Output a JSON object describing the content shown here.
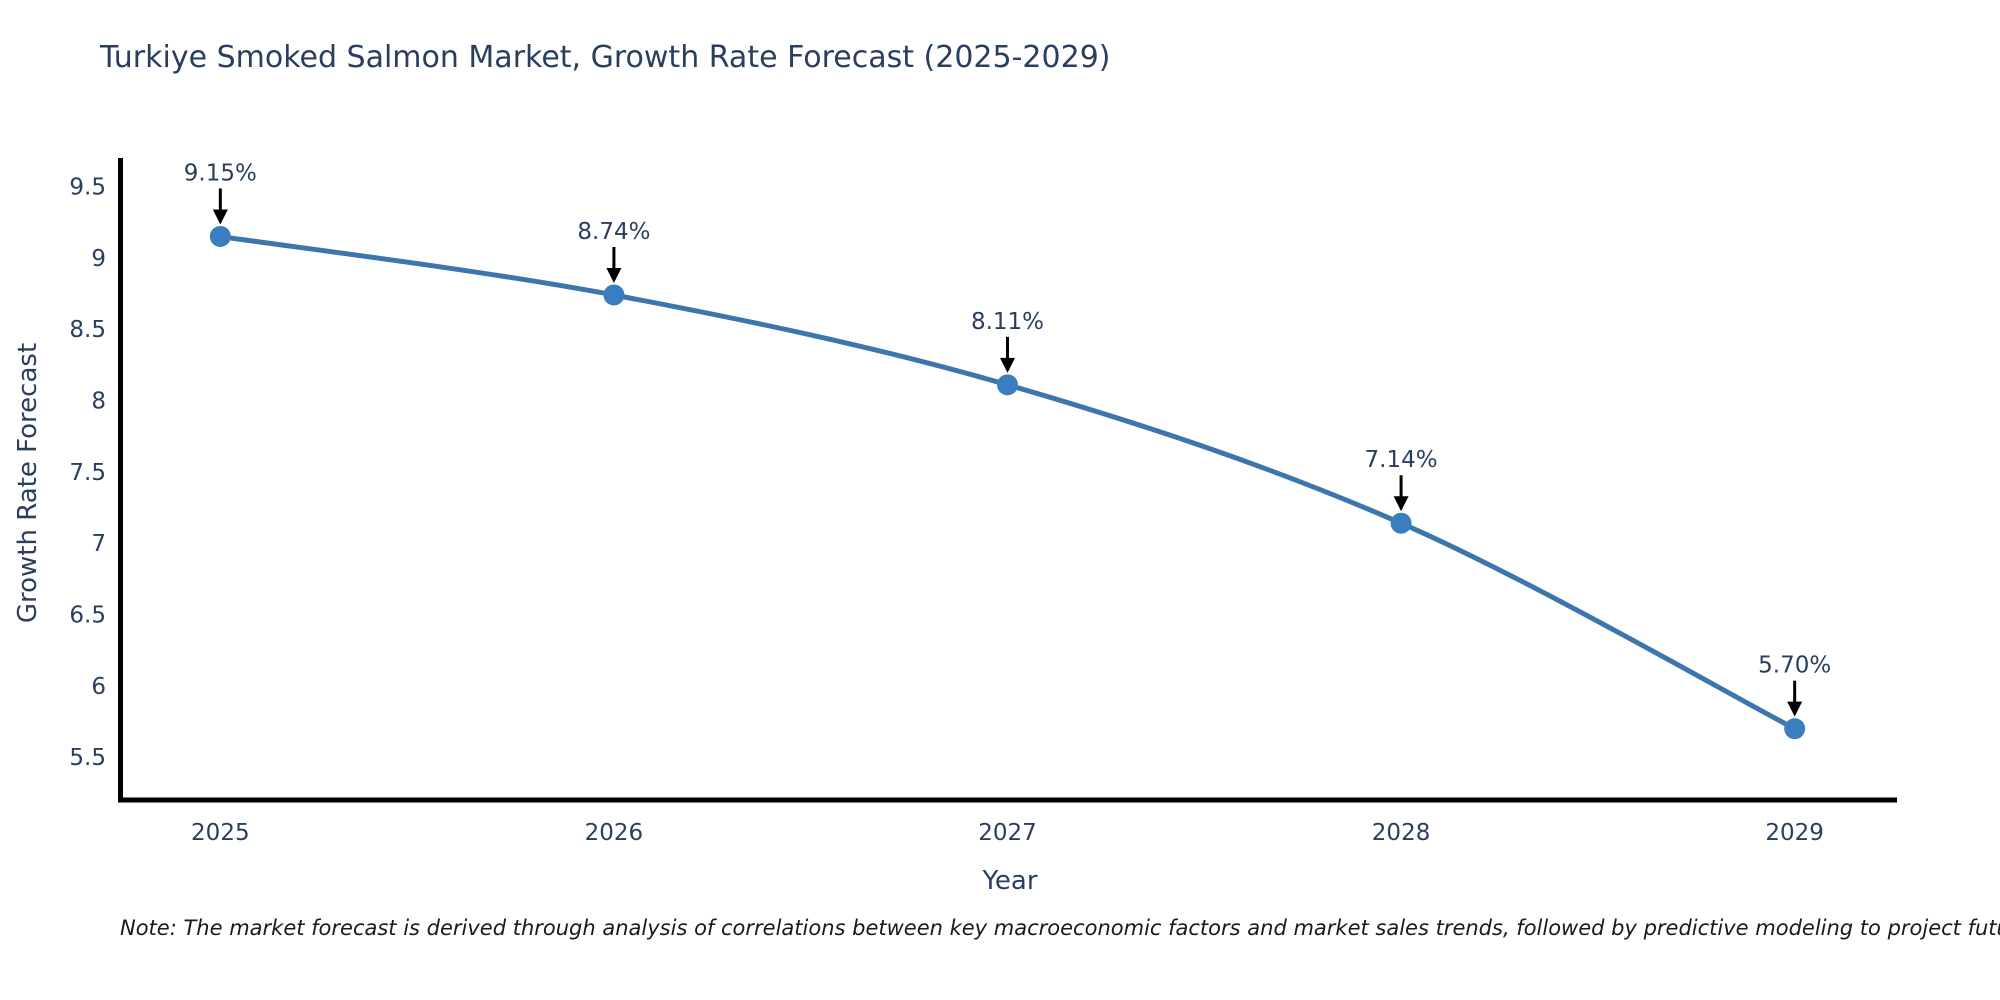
{
  "header": {
    "title": "Turkiye Smoked Salmon Market, Growth Rate Forecast (2025-2029)"
  },
  "chart_data": {
    "type": "line",
    "title": "Turkiye Smoked Salmon Market, Growth Rate Forecast (2025-2029)",
    "x": [
      2025,
      2026,
      2027,
      2028,
      2029
    ],
    "values": [
      9.15,
      8.74,
      8.11,
      7.14,
      5.7
    ],
    "point_labels": [
      "9.15%",
      "8.74%",
      "8.11%",
      "7.14%",
      "5.70%"
    ],
    "xlabel": "Year",
    "ylabel": "Growth Rate Forecast",
    "xtick_labels": [
      "2025",
      "2026",
      "2027",
      "2028",
      "2029"
    ],
    "ytick_values": [
      5.5,
      6,
      6.5,
      7,
      7.5,
      8,
      8.5,
      9,
      9.5
    ],
    "ytick_labels": [
      "5.5",
      "6",
      "6.5",
      "7",
      "7.5",
      "8",
      "8.5",
      "9",
      "9.5"
    ],
    "ylim": [
      5.2,
      9.7
    ],
    "xlim": [
      2024.74,
      2029.26
    ],
    "grid": false,
    "legend": "none",
    "line_shape": "spline",
    "annotation_style": "down-arrow",
    "colors": {
      "line": "#3c76ad",
      "marker": "#3a7ebf",
      "axis": "#000000",
      "text": "#2a3f5f",
      "annotation_arrow": "#000000"
    }
  },
  "footnote": {
    "text": "Note: The market forecast is derived through analysis of correlations between key macroeconomic factors and market sales trends, followed by predictive modeling to project future sales"
  }
}
